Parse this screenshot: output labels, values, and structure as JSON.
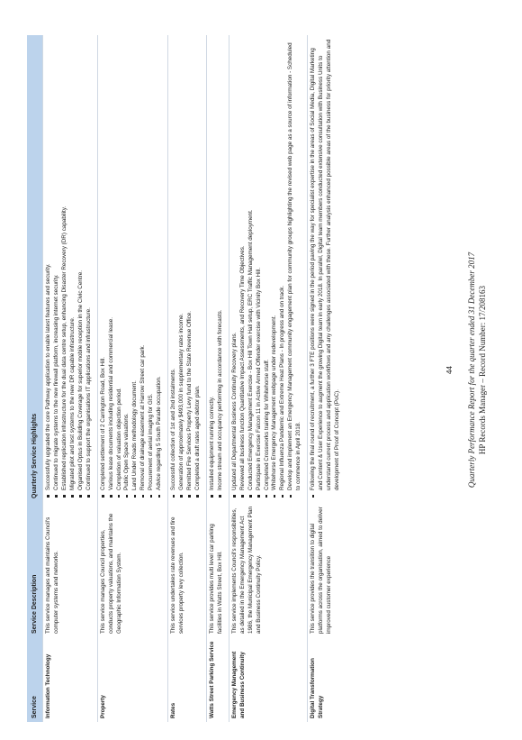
{
  "table": {
    "headers": [
      "Service",
      "Service Description",
      "Quarterly Service Highlights"
    ],
    "rows": [
      {
        "service": "Information Technology",
        "description": "This service manages and maintains Council's computer systems and networks.",
        "highlights": [
          "Successfully upgraded the core Pathway application to enable latest features and security.",
          "Continued to migrate systems to the new firewall platform, increasing internet security.",
          "Established replication infrastructure for the dual data centre setup, enhancing Disaster Recovery (DR) capability.",
          "Migrated pilot and test systems to the new DR capable infrastructure.",
          "Organised Optus in Building Coverage for superior mobile reception in the Civic Centre.",
          "Continued to support the organisations IT applications and infrastructure."
        ]
      },
      {
        "service": "Property",
        "description": "This service manages Council properties, conducts property valuations, and maintains the Geographic Information System.",
        "highlights": [
          "Completed settlement of 2 Carrington Road, Box Hill.",
          "Various lease documents including residential and commercial lease.",
          "Completion of valuation objection period.",
          "Public Open Space valuations.",
          "Land Under Roads methodology document.",
          "Removal of drainage easement at Harrow Street car park.",
          "Procurement of aerial imaging for GIS.",
          "Advice regarding 5 South Parade occupation."
        ]
      },
      {
        "service": "Rates",
        "description": "This service undertakes rate revenues and fire services property levy collection.",
        "highlights": [
          "Successful collection of 1st and 2nd instalments.",
          "Generation of approximately $493,000 in supplementary rates income.",
          "Remitted Fire Services Property Levy fund to the State Revenue Office.",
          "Completed a draft rates aged debtor plan."
        ]
      },
      {
        "service": "Watts Street Parking Service",
        "description": "This service provides multi level car parking facilities in Watts Street, Box Hill.",
        "highlights": [
          "Installed equipment running correctly.",
          "Income stream and occupancy performing in accordance with forecasts."
        ]
      },
      {
        "service": "Emergency Management and Business Continuity",
        "description": "This service implements Council's responsibilities, as detailed in the Emergency Management Act 1986, the Municipal Emergency Management Plan and Business Continuity Policy.",
        "highlights": [
          "Updated all Departmental Business Continuity Recovery plans.",
          "Reviewed all business function Quantitative Impact Assessments, and Recovery Time Objectives.",
          "Conducted Emergency Management Exercise - Box Hill Town Hall setup, ERC Traffic Management deployment.",
          "Participate in Exercise Falcon 11 in Active Armed Offender exercise with Vicinity Box Hill.",
          "Completed Crossworks training for Whitehorse staff.",
          "Whitehorse Emergency Management webpage under redevelopment.",
          "Regional Influenza Pandemic and Extreme Heat Plans - In progress and on track.",
          "Develop and implement an Emergency Management community engagement plan for community groups highlighting the revised web page as a source of information - Scheduled to commence in April 2018."
        ]
      },
      {
        "service": "Digital Transformation Strategy",
        "description": "This service provides the transition to digital platforms across the organisation, aimed to deliver improved customer experience",
        "highlights": [
          "Following the final round of recruitment, a further 3 FTE positions were signed in the period paving the way for specialist expertise in the areas of Social Media, Digital Marketing and Content & User Experience to augment the growing Digital team in early 2018. In parallel, Digital team members conducted extensive consultation with Business Units to understand current process and application workflows and any challenges associated with these. Further analysis enhanced possible areas of the business for priority attention and development of Proof of Concept (PoC)."
        ]
      }
    ]
  },
  "page_number": "44",
  "footer": {
    "line1": "Quarterly Performance Report for the quarter ended 31 December 2017",
    "line2": "HP Records Manager – Record Number: 17/208163"
  }
}
